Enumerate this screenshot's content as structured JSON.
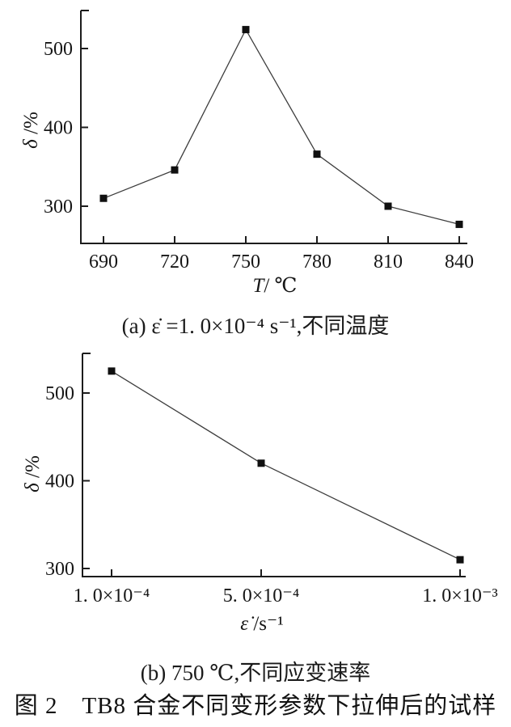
{
  "figure": {
    "caption_a": "(a) ε̇ =1. 0×10⁻⁴ s⁻¹,不同温度",
    "caption_b": "(b) 750 ℃,不同应变速率",
    "title": "图 2　TB8 合金不同变形参数下拉伸后的试样"
  },
  "colors": {
    "axis": "#1c1c1c",
    "line": "#3d3d3d",
    "marker": "#101010",
    "text": "#161616",
    "background": "#ffffff"
  },
  "chart_data": [
    {
      "type": "line",
      "panel": "a",
      "title": "(a) ε̇ =1. 0×10⁻⁴ s⁻¹,不同温度",
      "xlabel": "T/℃",
      "ylabel": "δ/%",
      "xlabel_segments": [
        {
          "text": "T",
          "italic": true
        },
        {
          "text": "/ ℃"
        }
      ],
      "ylabel_segments": [
        {
          "text": "δ",
          "italic": true
        },
        {
          "text": " /%"
        }
      ],
      "x": [
        690,
        720,
        750,
        780,
        810,
        840
      ],
      "x_tick_labels": [
        "690",
        "720",
        "750",
        "780",
        "810",
        "840"
      ],
      "values": [
        310,
        346,
        524,
        366,
        300,
        277
      ],
      "y_ticks": [
        300,
        400,
        500
      ],
      "y_tick_labels": [
        "300",
        "400",
        "500"
      ],
      "xlim": [
        680,
        843
      ],
      "ylim": [
        253,
        548
      ],
      "grid": false,
      "legend": "none",
      "marker": "filled-square",
      "series_name": "elongation vs temperature"
    },
    {
      "type": "line",
      "panel": "b",
      "title": "(b) 750 ℃,不同应变速率",
      "xlabel": "ε̇/s⁻¹",
      "ylabel": "δ/%",
      "xlabel_segments": [
        {
          "text": "ε̇",
          "italic": true
        },
        {
          "text": " /s⁻¹"
        }
      ],
      "ylabel_segments": [
        {
          "text": "δ",
          "italic": true
        },
        {
          "text": " /%"
        }
      ],
      "x": [
        0.0001,
        0.0005,
        0.001
      ],
      "x_tick_labels": [
        "1. 0×10⁻⁴",
        "5. 0×10⁻⁴",
        "1. 0×10⁻³"
      ],
      "values": [
        525,
        420,
        310
      ],
      "y_ticks": [
        300,
        400,
        500
      ],
      "y_tick_labels": [
        "300",
        "400",
        "500"
      ],
      "xlim": [
        9e-05,
        0.00102
      ],
      "ylim": [
        292,
        545
      ],
      "grid": false,
      "legend": "none",
      "marker": "filled-square",
      "series_name": "elongation vs strain rate"
    }
  ]
}
